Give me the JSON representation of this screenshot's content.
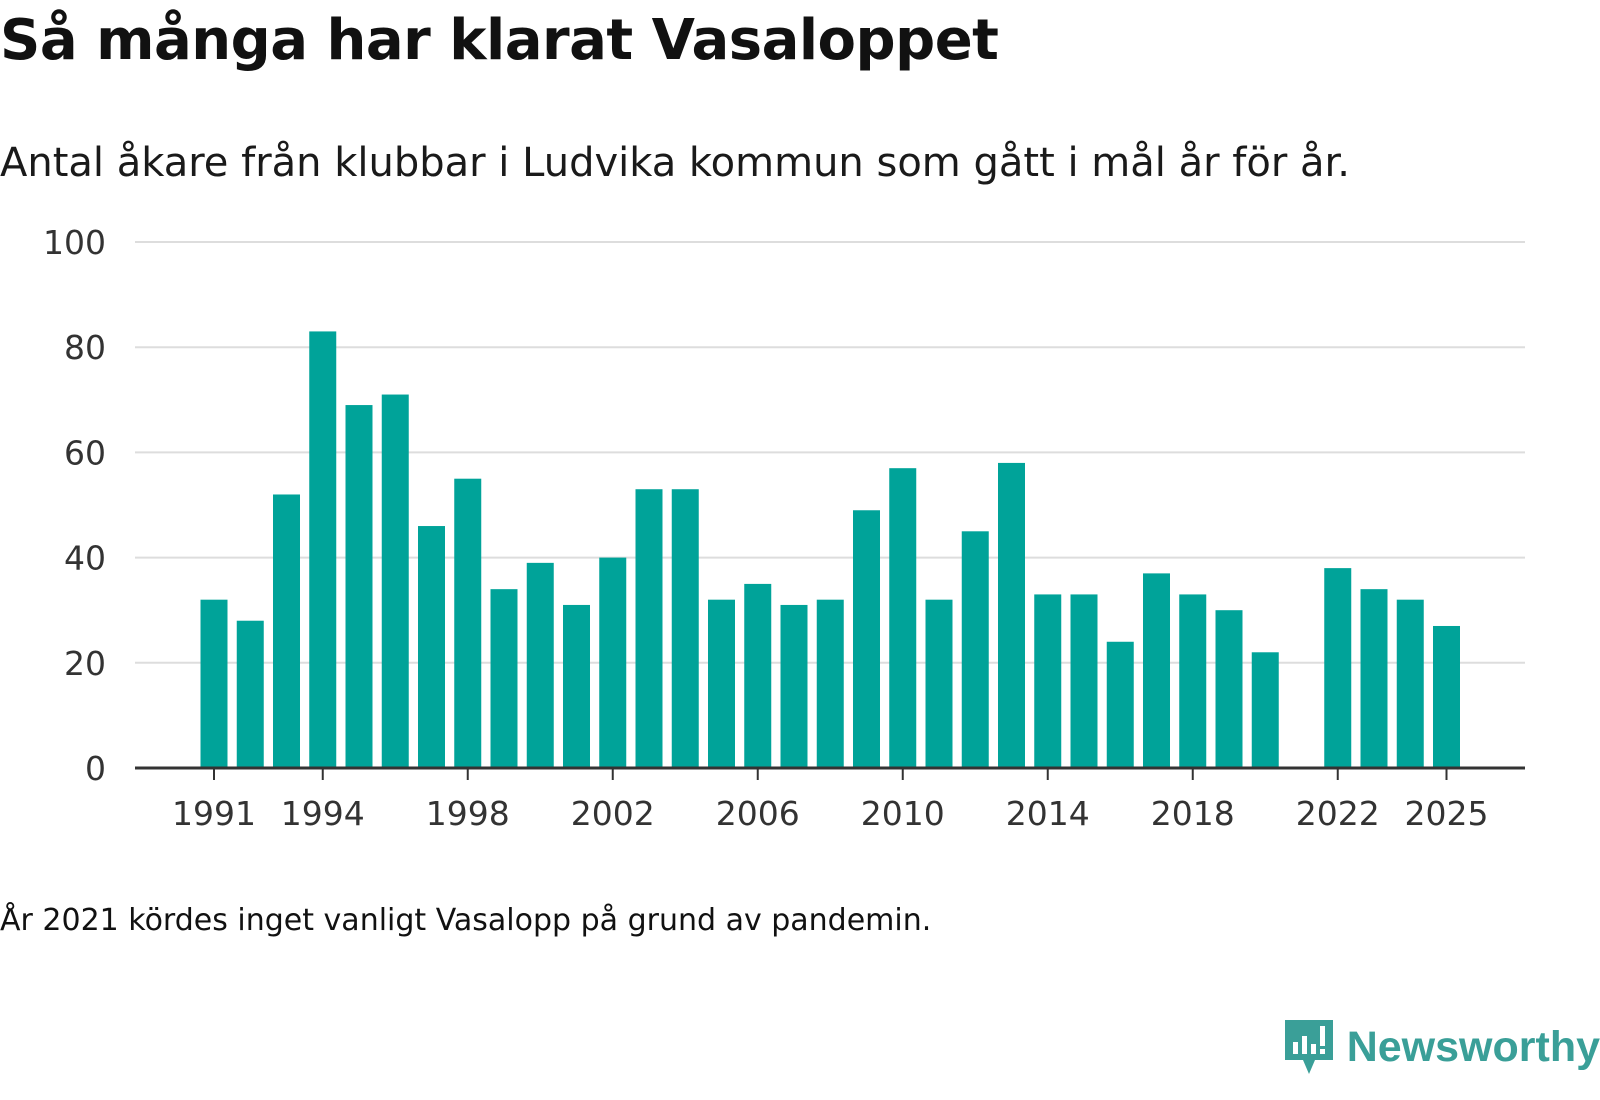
{
  "header": {
    "title": "Så många har klarat Vasaloppet",
    "subtitle": "Antal åkare från klubbar i Ludvika kommun som gått i mål år för år."
  },
  "footer": {
    "note": "År 2021 kördes inget vanligt Vasalopp på grund av pandemin.",
    "brand": "Newsworthy",
    "brand_icon": "newsworthy-logo-icon"
  },
  "colors": {
    "bar": "#00a399",
    "grid": "#dddddd",
    "axis": "#333333",
    "brand": "#3a9f98"
  },
  "chart_data": {
    "type": "bar",
    "title": "Så många har klarat Vasaloppet",
    "xlabel": "",
    "ylabel": "",
    "ylim": [
      0,
      100
    ],
    "yticks": [
      0,
      20,
      40,
      60,
      80,
      100
    ],
    "xticks": [
      1991,
      1994,
      1998,
      2002,
      2006,
      2010,
      2014,
      2018,
      2022,
      2025
    ],
    "grid": true,
    "categories": [
      1991,
      1992,
      1993,
      1994,
      1995,
      1996,
      1997,
      1998,
      1999,
      2000,
      2001,
      2002,
      2003,
      2004,
      2005,
      2006,
      2007,
      2008,
      2009,
      2010,
      2011,
      2012,
      2013,
      2014,
      2015,
      2016,
      2017,
      2018,
      2019,
      2020,
      2021,
      2022,
      2023,
      2024,
      2025
    ],
    "values": [
      32,
      28,
      52,
      83,
      69,
      71,
      46,
      55,
      34,
      39,
      31,
      40,
      53,
      53,
      32,
      35,
      31,
      32,
      49,
      57,
      32,
      45,
      58,
      33,
      33,
      24,
      37,
      33,
      30,
      22,
      null,
      38,
      34,
      32,
      27
    ]
  }
}
